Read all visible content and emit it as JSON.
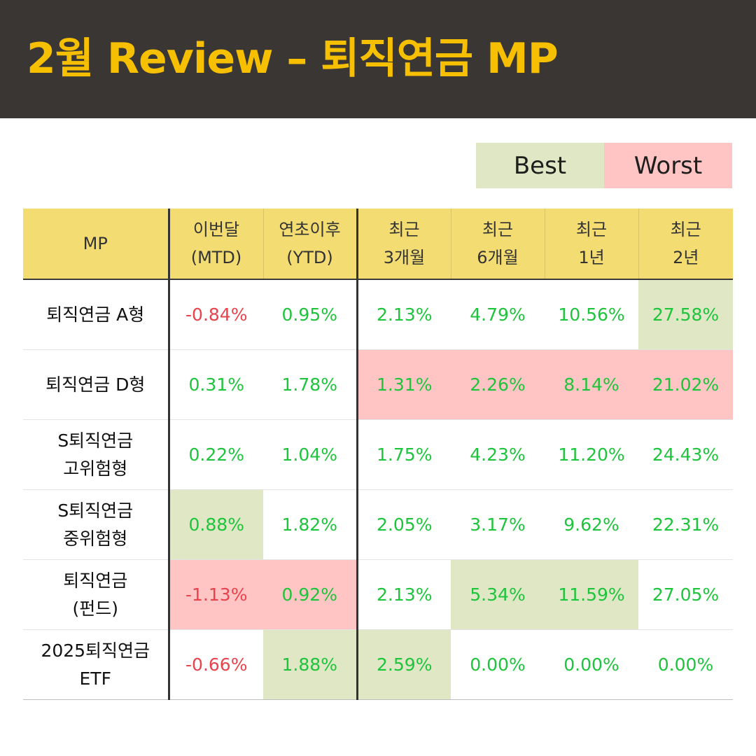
{
  "title": "2월 Review – 퇴직연금 MP",
  "legend": {
    "best": "Best",
    "worst": "Worst"
  },
  "colors": {
    "best_bg": "#e0e7c5",
    "worst_bg": "#ffc4c4",
    "positive": "#1ec43c",
    "negative": "#e8434d",
    "header_bg": "#393634",
    "title": "#f6c000",
    "column_header_bg": "#f3dd73"
  },
  "table": {
    "headers": [
      {
        "l1": "MP",
        "l2": ""
      },
      {
        "l1": "이번달",
        "l2": "(MTD)"
      },
      {
        "l1": "연초이후",
        "l2": "(YTD)"
      },
      {
        "l1": "최근",
        "l2": "3개월"
      },
      {
        "l1": "최근",
        "l2": "6개월"
      },
      {
        "l1": "최근",
        "l2": "1년"
      },
      {
        "l1": "최근",
        "l2": "2년"
      }
    ],
    "rows": [
      {
        "name1": "퇴직연금 A형",
        "name2": "",
        "values": [
          "-0.84%",
          "0.95%",
          "2.13%",
          "4.79%",
          "10.56%",
          "27.58%"
        ],
        "highlight": [
          "",
          "",
          "",
          "",
          "",
          "best"
        ]
      },
      {
        "name1": "퇴직연금 D형",
        "name2": "",
        "values": [
          "0.31%",
          "1.78%",
          "1.31%",
          "2.26%",
          "8.14%",
          "21.02%"
        ],
        "highlight": [
          "",
          "",
          "worst",
          "worst",
          "worst",
          "worst"
        ]
      },
      {
        "name1": "S퇴직연금",
        "name2": "고위험형",
        "values": [
          "0.22%",
          "1.04%",
          "1.75%",
          "4.23%",
          "11.20%",
          "24.43%"
        ],
        "highlight": [
          "",
          "",
          "",
          "",
          "",
          ""
        ]
      },
      {
        "name1": "S퇴직연금",
        "name2": "중위험형",
        "values": [
          "0.88%",
          "1.82%",
          "2.05%",
          "3.17%",
          "9.62%",
          "22.31%"
        ],
        "highlight": [
          "best",
          "",
          "",
          "",
          "",
          ""
        ]
      },
      {
        "name1": "퇴직연금",
        "name2": "(펀드)",
        "values": [
          "-1.13%",
          "0.92%",
          "2.13%",
          "5.34%",
          "11.59%",
          "27.05%"
        ],
        "highlight": [
          "worst",
          "worst",
          "",
          "best",
          "best",
          ""
        ]
      },
      {
        "name1": "2025퇴직연금",
        "name2": "ETF",
        "values": [
          "-0.66%",
          "1.88%",
          "2.59%",
          "0.00%",
          "0.00%",
          "0.00%"
        ],
        "highlight": [
          "",
          "best",
          "best",
          "",
          "",
          ""
        ]
      }
    ]
  }
}
